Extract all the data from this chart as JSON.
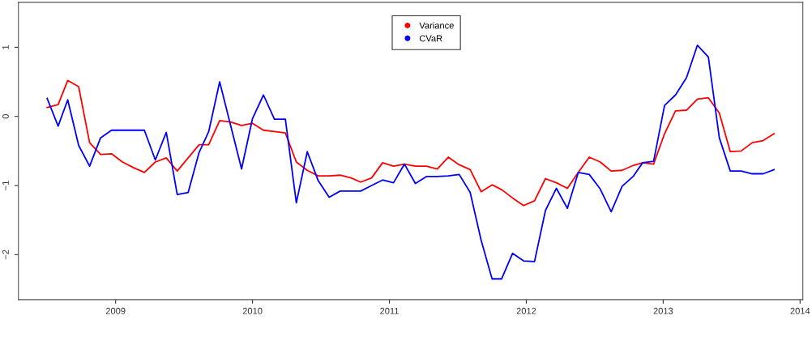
{
  "chart_data": {
    "type": "line",
    "x": [
      2008.5,
      2008.58,
      2008.65,
      2008.73,
      2008.81,
      2008.89,
      2008.97,
      2009.05,
      2009.13,
      2009.21,
      2009.29,
      2009.37,
      2009.45,
      2009.53,
      2009.61,
      2009.68,
      2009.76,
      2009.84,
      2009.92,
      2010.0,
      2010.08,
      2010.16,
      2010.24,
      2010.32,
      2010.4,
      2010.48,
      2010.56,
      2010.64,
      2010.72,
      2010.79,
      2010.87,
      2010.95,
      2011.03,
      2011.11,
      2011.19,
      2011.27,
      2011.35,
      2011.43,
      2011.51,
      2011.59,
      2011.67,
      2011.75,
      2011.82,
      2011.9,
      2011.98,
      2012.06,
      2012.14,
      2012.22,
      2012.3,
      2012.38,
      2012.46,
      2012.54,
      2012.62,
      2012.7,
      2012.78,
      2012.85,
      2012.93,
      2013.01,
      2013.09,
      2013.17,
      2013.25,
      2013.33,
      2013.41,
      2013.49,
      2013.57,
      2013.65,
      2013.73,
      2013.81
    ],
    "series": [
      {
        "name": "Variance",
        "color": "#ff0000",
        "values": [
          0.13,
          0.17,
          0.52,
          0.43,
          -0.38,
          -0.55,
          -0.54,
          -0.66,
          -0.74,
          -0.81,
          -0.66,
          -0.6,
          -0.79,
          -0.6,
          -0.41,
          -0.41,
          -0.06,
          -0.08,
          -0.13,
          -0.1,
          -0.2,
          -0.22,
          -0.24,
          -0.66,
          -0.78,
          -0.86,
          -0.86,
          -0.85,
          -0.89,
          -0.95,
          -0.89,
          -0.67,
          -0.72,
          -0.69,
          -0.72,
          -0.72,
          -0.76,
          -0.59,
          -0.7,
          -0.77,
          -1.09,
          -0.99,
          -1.06,
          -1.18,
          -1.29,
          -1.22,
          -0.9,
          -0.96,
          -1.04,
          -0.81,
          -0.59,
          -0.66,
          -0.79,
          -0.78,
          -0.71,
          -0.67,
          -0.69,
          -0.25,
          0.08,
          0.09,
          0.25,
          0.27,
          0.05,
          -0.51,
          -0.5,
          -0.38,
          -0.35,
          -0.25
        ]
      },
      {
        "name": "CVaR",
        "color": "#0000ff",
        "values": [
          0.26,
          -0.14,
          0.24,
          -0.42,
          -0.72,
          -0.31,
          -0.2,
          -0.2,
          -0.2,
          -0.2,
          -0.63,
          -0.23,
          -1.13,
          -1.1,
          -0.52,
          -0.22,
          0.5,
          -0.13,
          -0.76,
          -0.03,
          0.31,
          -0.04,
          -0.04,
          -1.25,
          -0.51,
          -0.93,
          -1.17,
          -1.08,
          -1.08,
          -1.08,
          -1.0,
          -0.92,
          -0.96,
          -0.69,
          -0.97,
          -0.87,
          -0.87,
          -0.86,
          -0.84,
          -1.1,
          -1.79,
          -2.35,
          -2.35,
          -1.98,
          -2.09,
          -2.1,
          -1.36,
          -1.04,
          -1.33,
          -0.81,
          -0.84,
          -1.05,
          -1.38,
          -1.01,
          -0.87,
          -0.67,
          -0.65,
          0.16,
          0.31,
          0.56,
          1.03,
          0.86,
          -0.31,
          -0.79,
          -0.79,
          -0.83,
          -0.83,
          -0.77
        ]
      }
    ],
    "xlim": [
      2008.29,
      2014.02
    ],
    "xticks": [
      2009,
      2010,
      2011,
      2012,
      2013,
      2014
    ],
    "ylim": [
      -2.65,
      1.65
    ],
    "yticks": [
      -2,
      -1,
      0,
      1
    ],
    "grid": false,
    "legend": "top"
  }
}
